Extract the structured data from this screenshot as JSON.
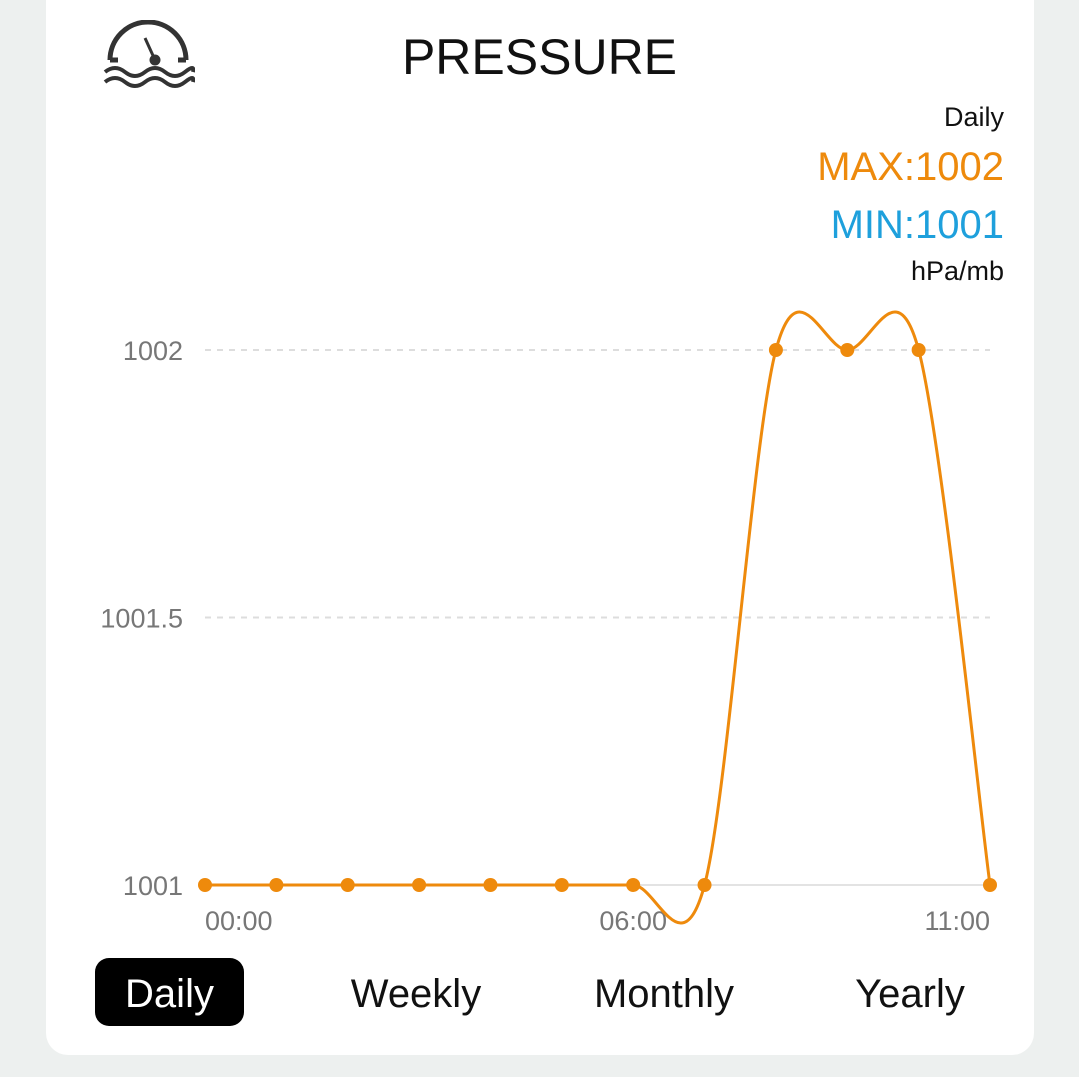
{
  "header": {
    "title": "PRESSURE",
    "icon": "pressure-gauge-icon"
  },
  "summary": {
    "period": "Daily",
    "max": "MAX:1002",
    "min": "MIN:1001",
    "unit": "hPa/mb"
  },
  "colors": {
    "line": "#ee8a0c",
    "max": "#ee8a0c",
    "min": "#1ea0dc"
  },
  "chart_data": {
    "type": "line",
    "x": [
      "00:00",
      "01:00",
      "02:00",
      "03:00",
      "04:00",
      "05:00",
      "06:00",
      "07:00",
      "08:00",
      "09:00",
      "10:00",
      "11:00"
    ],
    "values": [
      1001,
      1001,
      1001,
      1001,
      1001,
      1001,
      1001,
      1001,
      1002,
      1002,
      1002,
      1001
    ],
    "ylim": [
      1001,
      1002
    ],
    "yticks": [
      "1001",
      "1001.5",
      "1002"
    ],
    "xticks": [
      "00:00",
      "06:00",
      "11:00"
    ],
    "grid": true
  },
  "tabs": [
    {
      "label": "Daily",
      "active": true
    },
    {
      "label": "Weekly"
    },
    {
      "label": "Monthly"
    },
    {
      "label": "Yearly"
    }
  ]
}
